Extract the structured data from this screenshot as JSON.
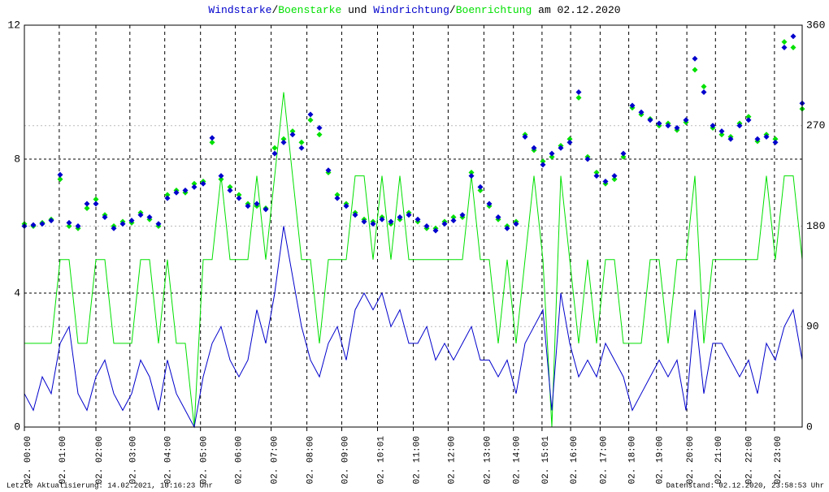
{
  "chart_data": {
    "type": "line",
    "title_parts": [
      "/",
      " und ",
      "/",
      " am 02.12.2020"
    ],
    "footer_left": "Letzte Aktualisierung: 14.02.2021, 10:16:23 Uhr",
    "footer_right": "Datenstand: 02.12.2020, 23:58:53 Uhr",
    "x": [
      0,
      1,
      2,
      3,
      4,
      5,
      6,
      7,
      8,
      9,
      10,
      11,
      12,
      13,
      14,
      15,
      16,
      17,
      18,
      19,
      20,
      21,
      22,
      23,
      24,
      25,
      26,
      27,
      28,
      29,
      30,
      31,
      32,
      33,
      34,
      35,
      36,
      37,
      38,
      39,
      40,
      41,
      42,
      43,
      44,
      45,
      46,
      47,
      48,
      49,
      50,
      51,
      52,
      53,
      54,
      55,
      56,
      57,
      58,
      59,
      60,
      61,
      62,
      63,
      64,
      65,
      66,
      67,
      68,
      69,
      70,
      71,
      72,
      73,
      74,
      75,
      76,
      77,
      78,
      79,
      80,
      81,
      82,
      83,
      84,
      85,
      86,
      87
    ],
    "xlim": [
      0,
      87
    ],
    "xticks": [
      {
        "value": 0,
        "label": "02. 00:00"
      },
      {
        "value": 3.9,
        "label": "02. 01:00"
      },
      {
        "value": 8.0,
        "label": "02. 02:00"
      },
      {
        "value": 11.8,
        "label": "02. 03:00"
      },
      {
        "value": 15.7,
        "label": "02. 04:00"
      },
      {
        "value": 19.7,
        "label": "02. 05:00"
      },
      {
        "value": 23.6,
        "label": "02. 06:00"
      },
      {
        "value": 27.6,
        "label": "02. 07:00"
      },
      {
        "value": 31.6,
        "label": "02. 08:00"
      },
      {
        "value": 35.5,
        "label": "02. 09:00"
      },
      {
        "value": 39.5,
        "label": "02. 10:01"
      },
      {
        "value": 43.5,
        "label": "02. 11:00"
      },
      {
        "value": 47.4,
        "label": "02. 12:00"
      },
      {
        "value": 51.4,
        "label": "02. 13:00"
      },
      {
        "value": 54.7,
        "label": "02. 14:00"
      },
      {
        "value": 57.9,
        "label": "02. 15:01"
      },
      {
        "value": 61.1,
        "label": "02. 16:00"
      },
      {
        "value": 64.4,
        "label": "02. 17:00"
      },
      {
        "value": 67.6,
        "label": "02. 18:00"
      },
      {
        "value": 70.7,
        "label": "02. 19:00"
      },
      {
        "value": 74.1,
        "label": "02. 20:00"
      },
      {
        "value": 77.3,
        "label": "02. 21:00"
      },
      {
        "value": 80.7,
        "label": "02. 22:00"
      },
      {
        "value": 83.9,
        "label": "02. 23:00"
      }
    ],
    "ylim": [
      0,
      12
    ],
    "yticks": [
      0,
      4,
      8,
      12
    ],
    "y2lim": [
      0,
      360
    ],
    "y2ticks": [
      0,
      90,
      180,
      270,
      360
    ],
    "grid": true,
    "series": [
      {
        "name": "Boenstarke",
        "type": "line",
        "color": "#00e000",
        "values": [
          2.5,
          2.5,
          2.5,
          2.5,
          5,
          5,
          2.5,
          2.5,
          5,
          5,
          2.5,
          2.5,
          2.5,
          5,
          5,
          2.5,
          5,
          2.5,
          2.5,
          0,
          5,
          5,
          7.5,
          5,
          5,
          5,
          7.5,
          5,
          7.5,
          10,
          7.5,
          5,
          5,
          2.5,
          5,
          5,
          5,
          7.5,
          7.5,
          5,
          7.5,
          5,
          7.5,
          5,
          5,
          5,
          5,
          5,
          5,
          5,
          7.5,
          5,
          5,
          2.5,
          5,
          2.5,
          5,
          7.5,
          5,
          0,
          7.5,
          5,
          2.5,
          5,
          2.5,
          5,
          5,
          2.5,
          2.5,
          2.5,
          5,
          5,
          2.5,
          5,
          5,
          7.5,
          2.5,
          5,
          5,
          5,
          5,
          5,
          5,
          7.5,
          5,
          7.5,
          7.5,
          5
        ]
      },
      {
        "name": "Windstarke",
        "type": "line",
        "color": "#0000cc",
        "values": [
          1,
          0.5,
          1.5,
          1,
          2.5,
          3,
          1,
          0.5,
          1.5,
          2,
          1,
          0.5,
          1,
          2,
          1.5,
          0.5,
          2,
          1,
          0.5,
          0,
          1.5,
          2.5,
          3,
          2,
          1.5,
          2,
          3.5,
          2.5,
          4,
          6,
          4.5,
          3,
          2,
          1.5,
          2.5,
          3,
          2,
          3.5,
          4,
          3.5,
          4,
          3,
          3.5,
          2.5,
          2.5,
          3,
          2,
          2.5,
          2,
          2.5,
          3,
          2,
          2,
          1.5,
          2,
          1,
          2.5,
          3,
          3.5,
          0.5,
          4,
          2.5,
          1.5,
          2,
          1.5,
          2.5,
          2,
          1.5,
          0.5,
          1,
          1.5,
          2,
          1.5,
          2,
          0.5,
          3.5,
          1,
          2.5,
          2.5,
          2,
          1.5,
          2,
          1,
          2.5,
          2,
          3,
          3.5,
          2
        ]
      },
      {
        "name": "Boenrichtung",
        "type": "scatter",
        "axis": "y2",
        "color": "#00e000",
        "values": [
          182,
          180,
          183,
          186,
          222,
          180,
          178,
          196,
          204,
          190,
          180,
          184,
          183,
          192,
          186,
          180,
          208,
          212,
          210,
          218,
          220,
          255,
          222,
          215,
          208,
          200,
          198,
          196,
          250,
          258,
          265,
          255,
          275,
          262,
          228,
          208,
          200,
          192,
          186,
          184,
          188,
          182,
          186,
          192,
          184,
          178,
          178,
          184,
          188,
          188,
          228,
          212,
          198,
          186,
          180,
          184,
          262,
          248,
          238,
          242,
          252,
          258,
          295,
          242,
          228,
          218,
          222,
          242,
          286,
          280,
          276,
          270,
          272,
          266,
          273,
          320,
          305,
          268,
          262,
          260,
          272,
          278,
          256,
          262,
          258,
          345,
          340,
          285
        ]
      },
      {
        "name": "Windrichtung",
        "type": "scatter",
        "axis": "y2",
        "color": "#0000cc",
        "values": [
          180,
          181,
          182,
          185,
          226,
          183,
          180,
          200,
          200,
          188,
          178,
          182,
          185,
          190,
          188,
          182,
          205,
          210,
          212,
          215,
          218,
          259,
          225,
          212,
          205,
          198,
          200,
          195,
          245,
          255,
          262,
          250,
          280,
          268,
          230,
          205,
          198,
          190,
          184,
          182,
          186,
          184,
          188,
          190,
          186,
          180,
          176,
          182,
          185,
          190,
          225,
          215,
          200,
          188,
          178,
          182,
          260,
          250,
          235,
          245,
          250,
          255,
          300,
          240,
          225,
          220,
          225,
          245,
          288,
          282,
          275,
          272,
          270,
          268,
          275,
          330,
          300,
          270,
          265,
          258,
          270,
          275,
          258,
          260,
          255,
          340,
          350,
          290
        ]
      }
    ]
  }
}
